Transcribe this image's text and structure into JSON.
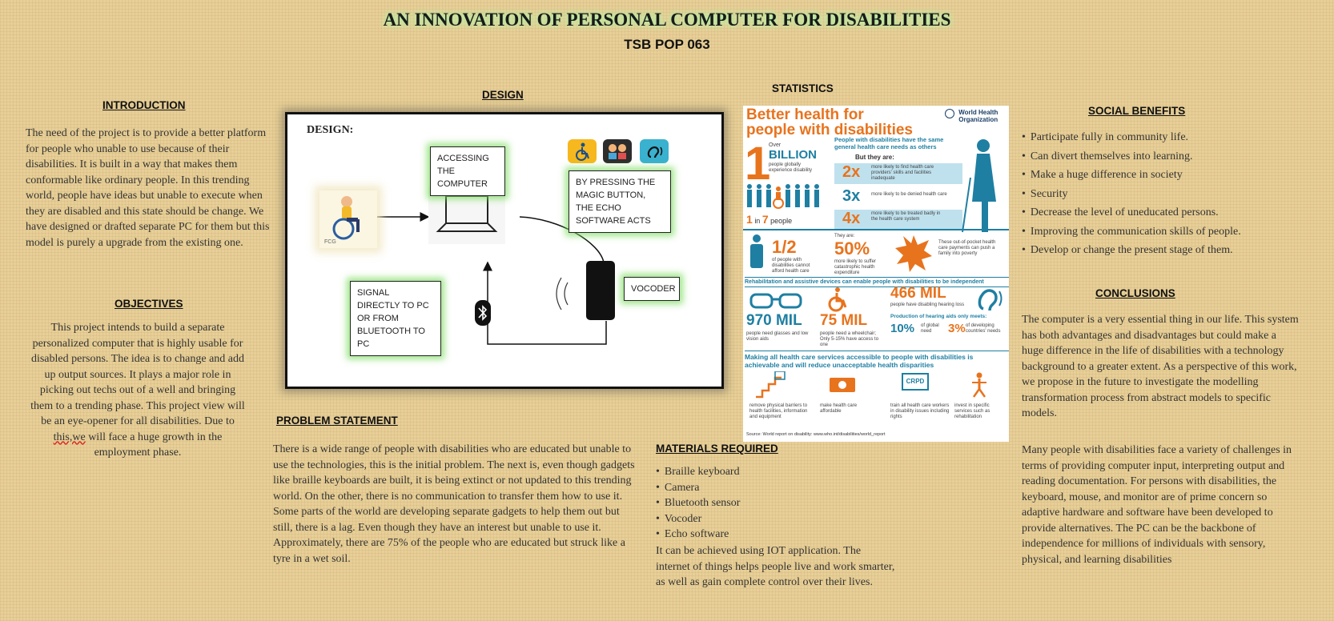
{
  "title": "AN INNOVATION OF PERSONAL COMPUTER FOR DISABILITIES",
  "subtitle": "TSB POP 063",
  "introduction": {
    "heading": "INTRODUCTION",
    "text": "The need of the project is to provide a better platform for people who unable to use because of their disabilities. It is built in a way that makes them conformable like ordinary people. In this trending world, people have ideas but unable to execute when they are disabled and this state should be change. We have designed or drafted separate PC for them but this model is purely a upgrade from the existing one."
  },
  "objectives": {
    "heading": "OBJECTIVES",
    "text_before": "This project intends to build a separate personalized computer that is highly usable for disabled persons. The idea is to change and add up output sources. It plays a major role in picking out techs out of a well and bringing them to a trending phase. This project view will be an eye-opener for all disabilities. Due to ",
    "text_misspelled": "this,we",
    "text_after": " will face a huge growth in the employment phase."
  },
  "design": {
    "heading": "DESIGN",
    "diagram_label": "DESIGN:",
    "box_accessing": "ACCESSING THE COMPUTER",
    "box_magic": "BY PRESSING THE MAGIC BUTTON, THE ECHO SOFTWARE ACTS",
    "box_signal": "SIGNAL DIRECTLY TO PC OR FROM BLUETOOTH TO PC",
    "box_vocoder": "VOCODER",
    "logo_text": "FCG"
  },
  "problem": {
    "heading": "PROBLEM STATEMENT",
    "text": "There is a wide range of people with disabilities who are educated but unable to use the technologies, this is the initial problem. The next is, even though gadgets like braille keyboards are built, it is being extinct or not updated to this trending world. On the other, there is no communication to transfer them how to use it. Some parts of the world are developing separate gadgets to help them out but still, there is a lag. Even though they have an interest but unable to use it. Approximately, there are 75% of the people who are educated but struck like a tyre in a wet soil."
  },
  "statistics": {
    "heading": "STATISTICS",
    "title": "Better health for people with disabilities",
    "who_line1": "World Health",
    "who_line2": "Organization",
    "over": "Over",
    "billion_num": "1",
    "billion": "BILLION",
    "billion_text": "people globally experience disability",
    "one_in_7": "1",
    "one_in_7_mid": "in",
    "one_in_7_num": "7",
    "one_in_7_suffix": "people",
    "same_needs": "People with disabilities have the same general health care needs as others",
    "but_they_are": "But they are:",
    "stat_2x": "2x",
    "stat_2x_text": "more likely to find health care providers' skills and facilities inadequate",
    "stat_3x": "3x",
    "stat_3x_text": "more likely to be denied health care",
    "stat_4x": "4x",
    "stat_4x_text": "more likely to be treated badly in the health care system",
    "half": "1/2",
    "half_text": "of people with disabilities cannot afford health care",
    "they_are": "They are:",
    "fifty": "50%",
    "fifty_text": "more likely to suffer catastrophic health expenditure",
    "pockets_text": "These out-of-pocket health care payments can push a family into poverty",
    "rehab_line": "Rehabilitation and assistive devices can enable people with disabilities to be independent",
    "glasses": "970 MIL",
    "glasses_text": "people need glasses and low vision aids",
    "wheelchair": "75 MIL",
    "wheelchair_text": "people need a wheelchair; Only 5-15% have access to one",
    "hearing": "466 MIL",
    "hearing_text": "people have disabling hearing loss",
    "aids_meet": "Production of hearing aids only meets:",
    "ten": "10%",
    "ten_text": "of global need",
    "three": "3%",
    "three_text": "of developing countries' needs",
    "making_line": "Making all health care services accessible to people with disabilities is achievable and will reduce unacceptable health disparities",
    "action1": "remove physical barriers to health facilities, information and equipment",
    "action2": "make health care affordable",
    "action3": "train all health care workers in disability issues including rights",
    "action4": "invest in specific services such as rehabilitation",
    "crpd": "CRPD",
    "source": "Source: World report on disability: www.who.int/disabilities/world_report"
  },
  "materials": {
    "heading": "MATERIALS REQUIRED",
    "items": [
      "Braille keyboard",
      "Camera",
      "Bluetooth sensor",
      "Vocoder",
      "Echo software"
    ],
    "text": "It can be achieved using IOT application. The internet of things helps people live and work smarter, as well as gain complete control over their lives."
  },
  "social": {
    "heading": "SOCIAL BENEFITS",
    "items": [
      "Participate fully in community life.",
      "Can divert themselves into learning.",
      "Make a huge difference in society",
      "Security",
      "Decrease the level of uneducated persons.",
      "Improving the communication skills of people.",
      "Develop or change the present stage of them."
    ]
  },
  "conclusions": {
    "heading": "CONCLUSIONS",
    "text1": "The computer is a very essential thing in our life. This system has both advantages and disadvantages but could make a huge difference in the life of disabilities with a technology background to a greater extent. As a perspective of this work, we propose in the future to investigate the modelling transformation process from abstract models to specific models.",
    "text2": "Many people with disabilities face a variety of challenges in terms of providing computer input, interpreting output and reading documentation. For persons with disabilities, the keyboard, mouse, and monitor are of prime concern so adaptive hardware and software have been developed to provide alternatives. The PC can be the backbone of independence for millions of individuals with sensory, physical, and learning disabilities"
  },
  "colors": {
    "orange": "#e8731d",
    "blue": "#1e7fa2",
    "glow": "#8be06a",
    "bg": "#e7cf97"
  }
}
